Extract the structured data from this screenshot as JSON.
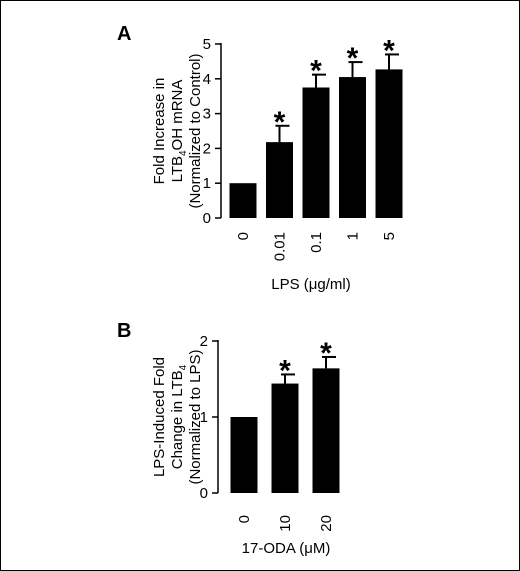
{
  "chart_data": [
    {
      "type": "bar",
      "panel": "A",
      "categories": [
        "0",
        "0.01",
        "0.1",
        "1",
        "5"
      ],
      "values": [
        1.0,
        2.18,
        3.75,
        4.05,
        4.27
      ],
      "errors": [
        0.0,
        0.47,
        0.37,
        0.43,
        0.43
      ],
      "significance": [
        "",
        "*",
        "*",
        "*",
        "*"
      ],
      "ylim": [
        0,
        5
      ],
      "yticks": [
        "0",
        "1",
        "2",
        "3",
        "4",
        "5"
      ],
      "xlabel": "LPS (μg/ml)",
      "ylabel_lines": [
        {
          "pre": "Fold Increase in",
          "sub": "",
          "post": ""
        },
        {
          "pre": "LTB",
          "sub": "4",
          "post": "OH mRNA"
        },
        {
          "pre": "(Normalized to Control)",
          "sub": "",
          "post": ""
        }
      ],
      "bar_color": "#000000"
    },
    {
      "type": "bar",
      "panel": "B",
      "categories": [
        "0",
        "10",
        "20"
      ],
      "values": [
        1.0,
        1.44,
        1.64
      ],
      "errors": [
        0.0,
        0.12,
        0.15
      ],
      "significance": [
        "",
        "*",
        "*"
      ],
      "ylim": [
        0,
        2
      ],
      "yticks": [
        "0",
        "1",
        "2"
      ],
      "xlabel": "17-ODA (μM)",
      "ylabel_lines": [
        {
          "pre": "LPS-Induced Fold",
          "sub": "",
          "post": ""
        },
        {
          "pre": "Change in LTB",
          "sub": "4",
          "post": ""
        },
        {
          "pre": "(Normalized to LPS)",
          "sub": "",
          "post": ""
        }
      ],
      "bar_color": "#000000"
    }
  ]
}
